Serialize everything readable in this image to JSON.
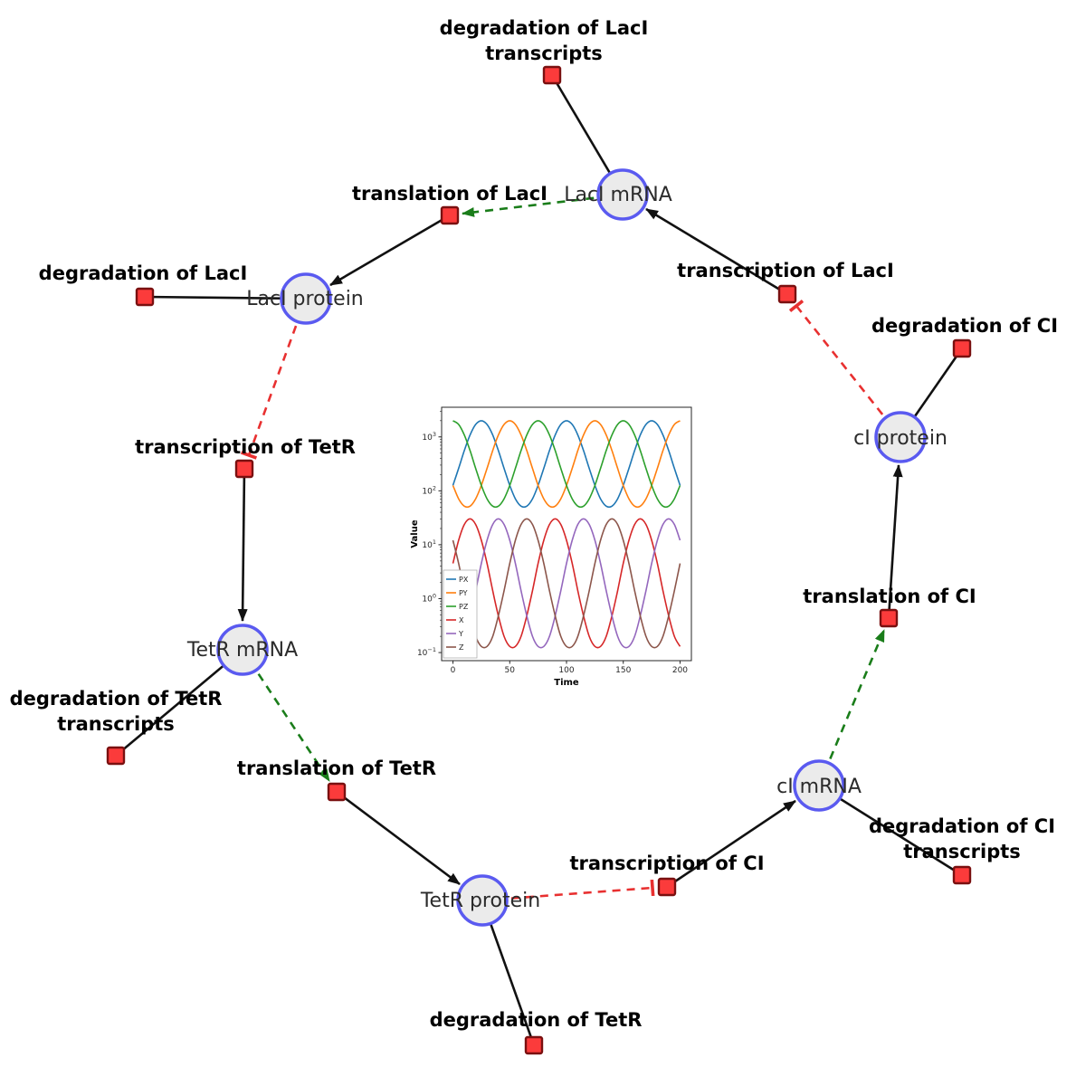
{
  "diagram": {
    "species": {
      "laci_mrna": "LacI mRNA",
      "laci_protein": "LacI protein",
      "ci_protein": "cI protein",
      "tetr_mrna": "TetR mRNA",
      "ci_mrna": "cI mRNA",
      "tetr_protein": "TetR protein"
    },
    "reactions": {
      "deg_laci_tr_line1": "degradation of LacI",
      "deg_laci_tr_line2": "transcripts",
      "transl_laci": "translation of LacI",
      "transcr_laci": "transcription of LacI",
      "deg_laci": "degradation of LacI",
      "deg_ci": "degradation of CI",
      "transcr_tetr": "transcription of TetR",
      "transl_ci": "translation of CI",
      "deg_tetr_tr_line1": "degradation of TetR",
      "deg_tetr_tr_line2": "transcripts",
      "transl_tetr": "translation of TetR",
      "transcr_ci": "transcription of CI",
      "deg_ci_tr_line1": "degradation of CI",
      "deg_ci_tr_line2": "transcripts",
      "deg_tetr": "degradation of TetR"
    },
    "colors": {
      "species_fill": "#ebebeb",
      "species_stroke": "#5a5af0",
      "reaction_fill": "#fb3b3b",
      "reaction_stroke": "#7a1010",
      "activation": "#1a7d1a",
      "inhibition": "#e83030",
      "edge": "#111111"
    }
  },
  "chart_data": {
    "type": "line",
    "title": "",
    "xlabel": "Time",
    "ylabel": "Value",
    "x_ticks": [
      0,
      50,
      100,
      150,
      200
    ],
    "y_scale": "log",
    "y_ticks_exponents": [
      -1,
      0,
      1,
      2,
      3
    ],
    "xlim": [
      -10,
      210
    ],
    "ylim_log10": [
      -1.15,
      3.55
    ],
    "legend_position": "lower-left",
    "x": [
      0,
      5,
      10,
      15,
      20,
      25,
      30,
      35,
      40,
      45,
      50,
      55,
      60,
      65,
      70,
      75,
      80,
      85,
      90,
      95,
      100,
      105,
      110,
      115,
      120,
      125,
      130,
      135,
      140,
      145,
      150,
      155,
      160,
      165,
      170,
      175,
      180,
      185,
      190,
      195,
      200
    ],
    "series": [
      {
        "name": "PX",
        "color": "#1f77b4",
        "values": [
          126,
          261,
          559,
          1084,
          1702,
          1995,
          1702,
          1084,
          559,
          261,
          126,
          71,
          52,
          52,
          71,
          126,
          261,
          559,
          1084,
          1702,
          1995,
          1702,
          1084,
          559,
          261,
          126,
          71,
          52,
          52,
          71,
          126,
          261,
          559,
          1084,
          1702,
          1995,
          1702,
          1084,
          559,
          261,
          126
        ]
      },
      {
        "name": "PY",
        "color": "#ff7f0e",
        "values": [
          126,
          71,
          52,
          52,
          71,
          126,
          261,
          559,
          1084,
          1702,
          1995,
          1702,
          1084,
          559,
          261,
          126,
          71,
          52,
          52,
          71,
          126,
          261,
          559,
          1084,
          1702,
          1995,
          1702,
          1084,
          559,
          261,
          126,
          71,
          52,
          52,
          71,
          126,
          261,
          559,
          1084,
          1702,
          1995
        ]
      },
      {
        "name": "PZ",
        "color": "#2ca02c",
        "values": [
          1995,
          1702,
          1084,
          559,
          261,
          126,
          71,
          52,
          52,
          71,
          126,
          261,
          559,
          1084,
          1702,
          1995,
          1702,
          1084,
          559,
          261,
          126,
          71,
          52,
          52,
          71,
          126,
          261,
          559,
          1084,
          1702,
          1995,
          1702,
          1084,
          559,
          261,
          126,
          71,
          52,
          52,
          71,
          126
        ]
      },
      {
        "name": "X",
        "color": "#d62728",
        "values": [
          4.5,
          12.1,
          23.8,
          30.2,
          23.8,
          12.1,
          4.5,
          1.4,
          0.48,
          0.2,
          0.13,
          0.13,
          0.2,
          0.48,
          1.4,
          4.5,
          12.1,
          23.8,
          30.2,
          23.8,
          12.1,
          4.5,
          1.4,
          0.48,
          0.2,
          0.13,
          0.13,
          0.2,
          0.48,
          1.4,
          4.5,
          12.1,
          23.8,
          30.2,
          23.8,
          12.1,
          4.5,
          1.4,
          0.48,
          0.2,
          0.13
        ]
      },
      {
        "name": "Y",
        "color": "#9467bd",
        "values": [
          0.13,
          0.13,
          0.2,
          0.48,
          1.4,
          4.5,
          12.1,
          23.8,
          30.2,
          23.8,
          12.1,
          4.5,
          1.4,
          0.48,
          0.2,
          0.13,
          0.13,
          0.2,
          0.48,
          1.4,
          4.5,
          12.1,
          23.8,
          30.2,
          23.8,
          12.1,
          4.5,
          1.4,
          0.48,
          0.2,
          0.13,
          0.13,
          0.2,
          0.48,
          1.4,
          4.5,
          12.1,
          23.8,
          30.2,
          23.8,
          12.1
        ]
      },
      {
        "name": "Z",
        "color": "#8c564b",
        "values": [
          12.1,
          4.5,
          1.4,
          0.48,
          0.2,
          0.13,
          0.13,
          0.2,
          0.48,
          1.4,
          4.5,
          12.1,
          23.8,
          30.2,
          23.8,
          12.1,
          4.5,
          1.4,
          0.48,
          0.2,
          0.13,
          0.13,
          0.2,
          0.48,
          1.4,
          4.5,
          12.1,
          23.8,
          30.2,
          23.8,
          12.1,
          4.5,
          1.4,
          0.48,
          0.2,
          0.13,
          0.13,
          0.2,
          0.48,
          1.4,
          4.5
        ]
      }
    ]
  }
}
